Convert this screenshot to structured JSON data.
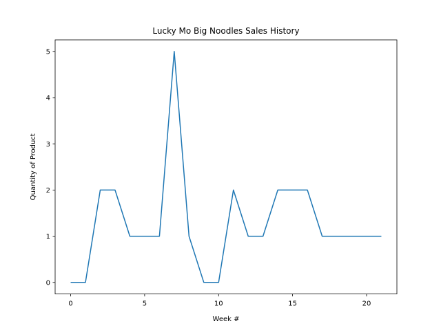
{
  "chart_data": {
    "type": "line",
    "title": "Lucky Mo Big Noodles Sales History",
    "xlabel": "Week #",
    "ylabel": "Quantity of Product",
    "xlim": [
      -1.05,
      22.05
    ],
    "ylim": [
      -0.25,
      5.25
    ],
    "xticks": [
      0,
      5,
      10,
      15,
      20
    ],
    "yticks": [
      0,
      1,
      2,
      3,
      4,
      5
    ],
    "grid": false,
    "series": [
      {
        "color": "#1f77b4",
        "x": [
          0,
          1,
          2,
          3,
          4,
          5,
          6,
          7,
          8,
          9,
          10,
          11,
          12,
          13,
          14,
          15,
          16,
          17,
          18,
          19,
          20,
          21
        ],
        "y": [
          0,
          0,
          2,
          2,
          1,
          1,
          1,
          5,
          1,
          0,
          0,
          2,
          1,
          1,
          2,
          2,
          2,
          1,
          1,
          1,
          1,
          1
        ]
      }
    ]
  }
}
